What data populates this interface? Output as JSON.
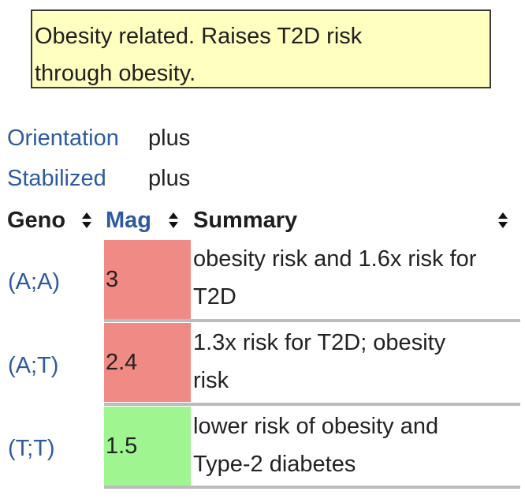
{
  "notice": {
    "line1": "Obesity related. Raises T2D risk",
    "line2": "through obesity."
  },
  "properties": [
    {
      "key": "Orientation",
      "value": "plus"
    },
    {
      "key": "Stabilized",
      "value": "plus"
    }
  ],
  "table": {
    "headers": {
      "geno": "Geno",
      "mag": "Mag",
      "summary": "Summary"
    },
    "rows": [
      {
        "geno": "(A;A)",
        "mag": "3",
        "summary_line1": "obesity risk and 1.6x risk for",
        "summary_line2": "T2D",
        "mag_color": "#f08a84"
      },
      {
        "geno": "(A;T)",
        "mag": "2.4",
        "summary_line1": "1.3x risk for T2D; obesity",
        "summary_line2": "risk",
        "mag_color": "#f08a84"
      },
      {
        "geno": "(T;T)",
        "mag": "1.5",
        "summary_line1": "lower risk of obesity and",
        "summary_line2": "Type-2 diabetes",
        "mag_color": "#9ff58f"
      }
    ]
  },
  "icons": {
    "sort": "sort-arrows-icon"
  }
}
